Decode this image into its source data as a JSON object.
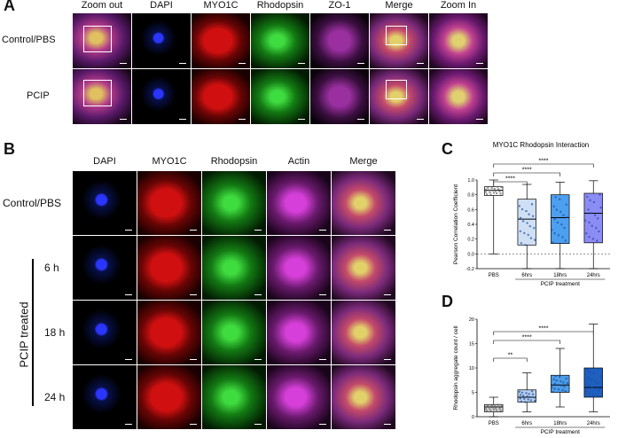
{
  "panelA": {
    "letter": "A",
    "columns": [
      "Zoom out",
      "DAPI",
      "MYO1C",
      "Rhodopsin",
      "ZO-1",
      "Merge",
      "Zoom In"
    ],
    "rows": [
      "Control/PBS",
      "PCIP"
    ]
  },
  "panelB": {
    "letter": "B",
    "columns": [
      "DAPI",
      "MYO1C",
      "Rhodopsin",
      "Actin",
      "Merge"
    ],
    "rows": [
      "Control/PBS",
      "6 h",
      "18 h",
      "24 h"
    ],
    "group_label": "PCIP treated"
  },
  "panelC": {
    "letter": "C",
    "chart_data": {
      "type": "box",
      "title": "MYO1C Rhodopsin Interaction",
      "xlabel": "PCIP treatment",
      "ylabel": "Pearson Correlation Coefficient",
      "categories": [
        "PBS",
        "6hrs",
        "18hrs",
        "24hrs"
      ],
      "ylim": [
        -0.2,
        1.0
      ],
      "yticks": [
        "1.0",
        "0.8",
        "0.6",
        "0.4",
        "0.2",
        "0.0",
        "-0.2"
      ],
      "series": [
        {
          "values_box": [
            {
              "min": 0.0,
              "q1": 0.79,
              "median": 0.86,
              "q3": 0.91,
              "max": 1.0
            },
            {
              "min": -0.2,
              "q1": 0.12,
              "median": 0.47,
              "q3": 0.74,
              "max": 0.94
            },
            {
              "min": -0.2,
              "q1": 0.14,
              "median": 0.49,
              "q3": 0.8,
              "max": 0.97
            },
            {
              "min": -0.2,
              "q1": 0.15,
              "median": 0.55,
              "q3": 0.82,
              "max": 0.99
            }
          ]
        }
      ],
      "colors": [
        "#ffffff",
        "#cfe0f5",
        "#4d9ff0",
        "#8c8cf5"
      ],
      "significance": [
        "****",
        "****",
        "****"
      ]
    }
  },
  "panelD": {
    "letter": "D",
    "chart_data": {
      "type": "box",
      "xlabel": "PCIP treatment",
      "ylabel": "Rhodopsin aggregate count / cell",
      "categories": [
        "PBS",
        "6hrs",
        "18hrs",
        "24hrs"
      ],
      "ylim": [
        0,
        20
      ],
      "yticks": [
        "0",
        "5",
        "10",
        "15",
        "20"
      ],
      "series": [
        {
          "values_box": [
            {
              "min": 0,
              "q1": 1,
              "median": 2,
              "q3": 2.5,
              "max": 4
            },
            {
              "min": 1,
              "q1": 3,
              "median": 4,
              "q3": 5.5,
              "max": 9
            },
            {
              "min": 2,
              "q1": 5,
              "median": 6.5,
              "q3": 8.5,
              "max": 14
            },
            {
              "min": 1,
              "q1": 4,
              "median": 6,
              "q3": 10,
              "max": 19
            }
          ]
        }
      ],
      "colors": [
        "#d9d9d9",
        "#b8d0ee",
        "#4d9ee8",
        "#1f5fbf"
      ],
      "significance": [
        "**",
        "****",
        "****"
      ]
    }
  }
}
